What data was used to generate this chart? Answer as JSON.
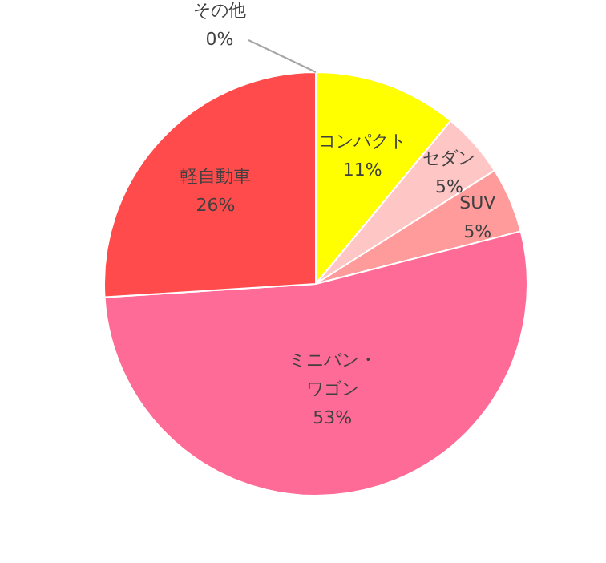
{
  "chart_data": {
    "type": "pie",
    "categories": [
      "コンパクト",
      "セダン",
      "SUV",
      "ミニバン・ワゴン",
      "軽自動車",
      "その他"
    ],
    "values": [
      11,
      5,
      5,
      53,
      26,
      0
    ],
    "value_labels": [
      "11%",
      "5%",
      "5%",
      "53%",
      "26%",
      "0%"
    ],
    "colors": [
      "#ffff00",
      "#ffc6c6",
      "#ff9b9b",
      "#ff6b97",
      "#ff4b4b",
      "#a6a6a6"
    ]
  }
}
